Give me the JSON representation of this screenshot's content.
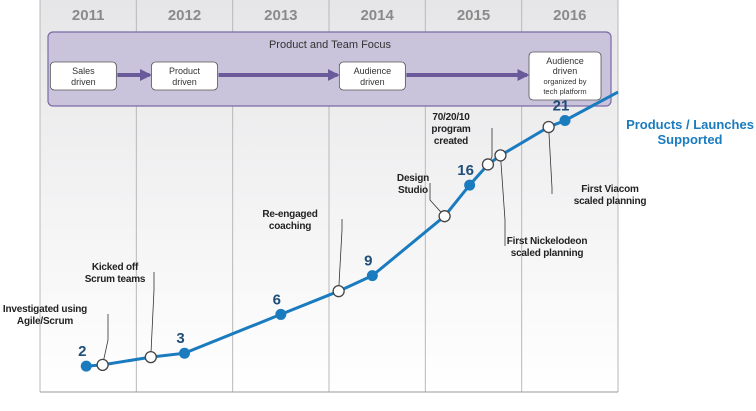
{
  "chart_data": {
    "type": "line",
    "years": [
      "2011",
      "2012",
      "2013",
      "2014",
      "2015",
      "2016"
    ],
    "xlim": [
      2011,
      2017
    ],
    "ylim": [
      0,
      28
    ],
    "series": [
      {
        "name": "Products / Launches Supported",
        "points": [
          {
            "x": 2011.48,
            "y": 2,
            "label": "2"
          },
          {
            "x": 2012.5,
            "y": 3,
            "label": "3"
          },
          {
            "x": 2013.5,
            "y": 6,
            "label": "6"
          },
          {
            "x": 2014.45,
            "y": 9,
            "label": "9"
          },
          {
            "x": 2015.46,
            "y": 16,
            "label": "16"
          },
          {
            "x": 2016.45,
            "y": 21,
            "label": "21"
          },
          {
            "x": 2017.0,
            "y": 23.2,
            "label": ""
          }
        ],
        "milestones": [
          {
            "x": 2011.65,
            "y": 2.1,
            "label": [
              "Investigated using",
              "Agile/Scrum"
            ]
          },
          {
            "x": 2012.15,
            "y": 2.7,
            "label": [
              "Kicked off",
              "Scrum teams"
            ]
          },
          {
            "x": 2014.1,
            "y": 7.8,
            "label": [
              "Re-engaged",
              "coaching"
            ]
          },
          {
            "x": 2015.2,
            "y": 13.6,
            "label": [
              "Design",
              "Studio"
            ]
          },
          {
            "x": 2015.65,
            "y": 17.6,
            "label": [
              "70/20/10",
              "program",
              "created"
            ]
          },
          {
            "x": 2015.78,
            "y": 18.3,
            "label": [
              "First Nickelodeon",
              "scaled planning"
            ]
          },
          {
            "x": 2016.28,
            "y": 20.5,
            "label": [
              "First Viacom",
              "scaled planning"
            ]
          }
        ]
      }
    ]
  },
  "focus": {
    "title": "Product and Team Focus",
    "stages": [
      {
        "year": 2011.45,
        "lines": [
          "Sales",
          "driven"
        ]
      },
      {
        "year": 2012.5,
        "lines": [
          "Product",
          "driven"
        ]
      },
      {
        "year": 2014.45,
        "lines": [
          "Audience",
          "driven"
        ]
      },
      {
        "year": 2016.45,
        "lines": [
          "Audience",
          "driven",
          "organized by",
          "tech platform"
        ]
      }
    ]
  },
  "colors": {
    "line": "#1a7bbf",
    "marker_fill": "#1a7bbf",
    "milestone_fill": "#ffffff",
    "milestone_stroke": "#444444",
    "band": "#e4e4e6",
    "focus_fill": "#c9c3db",
    "focus_stroke": "#7b6aa6",
    "arrow": "#6a5a99"
  }
}
